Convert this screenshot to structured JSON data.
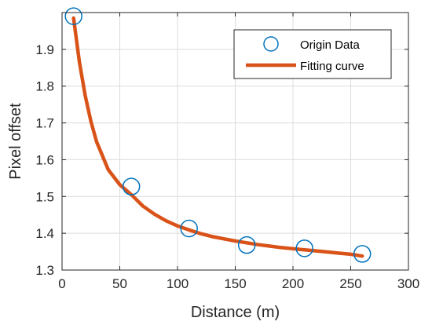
{
  "chart_data": {
    "type": "scatter",
    "title": "",
    "xlabel": "Distance (m)",
    "ylabel": "Pixel offset",
    "xlim": [
      0,
      300
    ],
    "ylim": [
      1.3,
      2.0
    ],
    "xticks": [
      0,
      50,
      100,
      150,
      200,
      250,
      300
    ],
    "yticks": [
      1.3,
      1.4,
      1.5,
      1.6,
      1.7,
      1.8,
      1.9
    ],
    "ytick_labels": [
      "1.3",
      "1.4",
      "1.5",
      "1.6",
      "1.7",
      "1.8",
      "1.9"
    ],
    "grid": true,
    "legend_position": "top-right",
    "series": [
      {
        "name": "Origin Data",
        "style": "marker",
        "marker": "circle",
        "color": "#0072BD",
        "x": [
          10,
          60,
          110,
          160,
          210,
          260
        ],
        "y": [
          1.99,
          1.527,
          1.413,
          1.368,
          1.359,
          1.344
        ]
      },
      {
        "name": "Fitting curve",
        "style": "line",
        "color": "#D95319",
        "x": [
          10,
          15,
          20,
          25,
          30,
          40,
          50,
          60,
          70,
          80,
          90,
          100,
          110,
          120,
          130,
          140,
          150,
          160,
          170,
          180,
          190,
          200,
          210,
          220,
          230,
          240,
          250,
          260
        ],
        "y": [
          1.985,
          1.866,
          1.775,
          1.704,
          1.648,
          1.573,
          1.532,
          1.505,
          1.474,
          1.452,
          1.434,
          1.42,
          1.409,
          1.399,
          1.391,
          1.385,
          1.379,
          1.374,
          1.369,
          1.365,
          1.361,
          1.358,
          1.355,
          1.352,
          1.349,
          1.346,
          1.343,
          1.338
        ]
      }
    ]
  }
}
